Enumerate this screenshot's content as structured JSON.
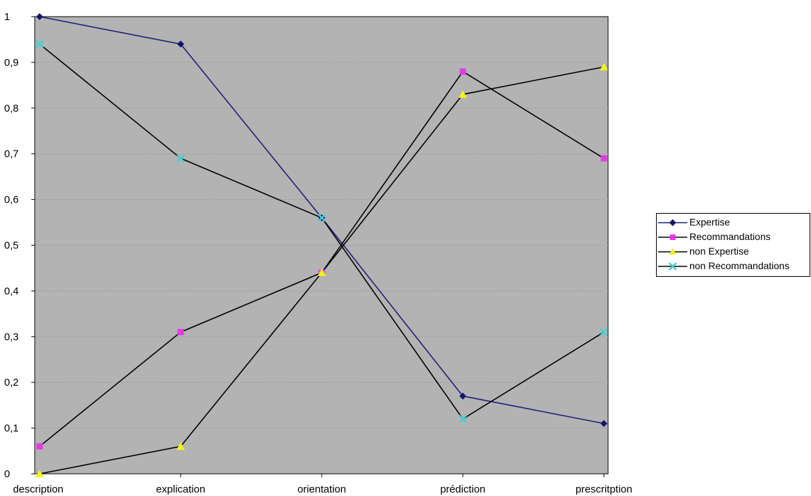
{
  "chart_data": {
    "type": "line",
    "categories": [
      "description",
      "explication",
      "orientation",
      "prédiction",
      "prescritption"
    ],
    "ylim": [
      0,
      1
    ],
    "yticks": [
      "0",
      "0,1",
      "0,2",
      "0,3",
      "0,4",
      "0,5",
      "0,6",
      "0,7",
      "0,8",
      "0,9",
      "1"
    ],
    "grid": true,
    "plot_background": "#b3b3b3",
    "legend_position": "right",
    "series": [
      {
        "name": "Expertise",
        "values": [
          1.0,
          0.94,
          0.56,
          0.17,
          0.11
        ],
        "line_color": "#1f1f7a",
        "marker_color": "#14146b",
        "marker": "diamond"
      },
      {
        "name": "Recommandations",
        "values": [
          0.06,
          0.31,
          0.44,
          0.88,
          0.69
        ],
        "line_color": "#000000",
        "marker_color": "#e33ae3",
        "marker": "square"
      },
      {
        "name": "non Expertise",
        "values": [
          0.0,
          0.06,
          0.44,
          0.83,
          0.89
        ],
        "line_color": "#000000",
        "marker_color": "#f2f21a",
        "marker": "triangle"
      },
      {
        "name": "non Recommandations",
        "values": [
          0.94,
          0.69,
          0.56,
          0.12,
          0.31
        ],
        "line_color": "#000000",
        "marker_color": "#3fd3d3",
        "marker": "x"
      }
    ]
  }
}
